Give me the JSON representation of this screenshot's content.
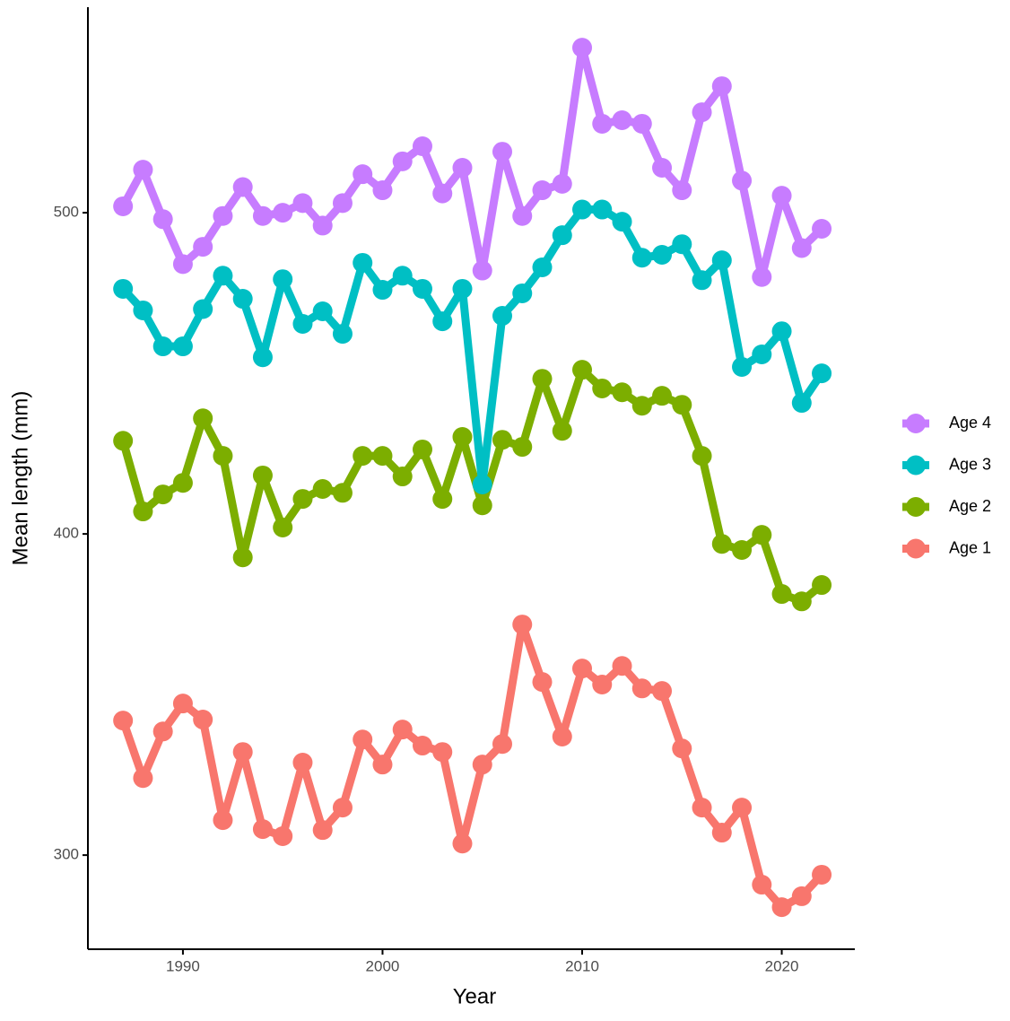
{
  "chart_data": {
    "type": "line",
    "x_label": "Year",
    "y_label": "Mean length (mm)",
    "x": [
      1987,
      1988,
      1989,
      1990,
      1991,
      1992,
      1993,
      1994,
      1995,
      1996,
      1997,
      1998,
      1999,
      2000,
      2001,
      2002,
      2003,
      2004,
      2005,
      2006,
      2007,
      2008,
      2009,
      2010,
      2011,
      2012,
      2013,
      2014,
      2015,
      2016,
      2017,
      2018,
      2019,
      2020,
      2021,
      2022
    ],
    "series": [
      {
        "name": "Age 4",
        "color": "#C77CFF",
        "values": [
          502,
          513.4,
          498,
          484,
          489.4,
          499,
          508,
          499,
          500,
          503,
          496,
          503,
          512,
          507,
          516,
          520.7,
          506,
          514,
          482,
          519,
          499,
          507,
          509,
          551.4,
          527.7,
          528.8,
          527.7,
          514,
          507,
          531.3,
          539.4,
          510,
          480,
          505.3,
          489,
          495
        ]
      },
      {
        "name": "Age 3",
        "color": "#00BFC4",
        "values": [
          476.3,
          469.6,
          458.4,
          458.4,
          470,
          480.4,
          473.2,
          455,
          479.3,
          465.4,
          469.3,
          462.3,
          484.4,
          476,
          480.4,
          476.3,
          466.2,
          476.3,
          415.4,
          467.9,
          474.9,
          483,
          493,
          501,
          501,
          497.2,
          486,
          486.9,
          490.2,
          479,
          485.2,
          452,
          455.9,
          463.1,
          440.8,
          450
        ]
      },
      {
        "name": "Age 2",
        "color": "#7CAE00",
        "values": [
          429,
          407,
          412.3,
          415.9,
          436,
          424.3,
          392.7,
          418.2,
          402,
          410.9,
          414,
          412.8,
          424.3,
          424.3,
          417.9,
          426.3,
          410.9,
          430.2,
          408.9,
          429.3,
          427.1,
          448.3,
          432.1,
          451.1,
          445.3,
          444.1,
          439.9,
          443,
          440.2,
          424.3,
          396.9,
          395,
          399.7,
          381.3,
          379,
          384.1
        ]
      },
      {
        "name": "Age 1",
        "color": "#F8766D",
        "values": [
          341.9,
          324,
          338.5,
          347.2,
          342.2,
          310.9,
          332.1,
          308.1,
          305.9,
          328.8,
          307.8,
          314.8,
          336,
          328.2,
          339.1,
          334.1,
          332.1,
          303.6,
          328.2,
          334.6,
          371.8,
          353.9,
          336.9,
          358.1,
          353.1,
          358.9,
          351.9,
          351.1,
          333.2,
          314.8,
          307,
          314.8,
          290.8,
          283.8,
          287.2,
          293.9
        ]
      }
    ],
    "xlim": [
      1985.24,
      2023.66
    ],
    "xticks": [
      1990,
      2000,
      2010,
      2020
    ],
    "ylim": [
      270.7,
      564
    ],
    "yticks": [
      300,
      400,
      500
    ],
    "grid": false,
    "legend": "right"
  }
}
